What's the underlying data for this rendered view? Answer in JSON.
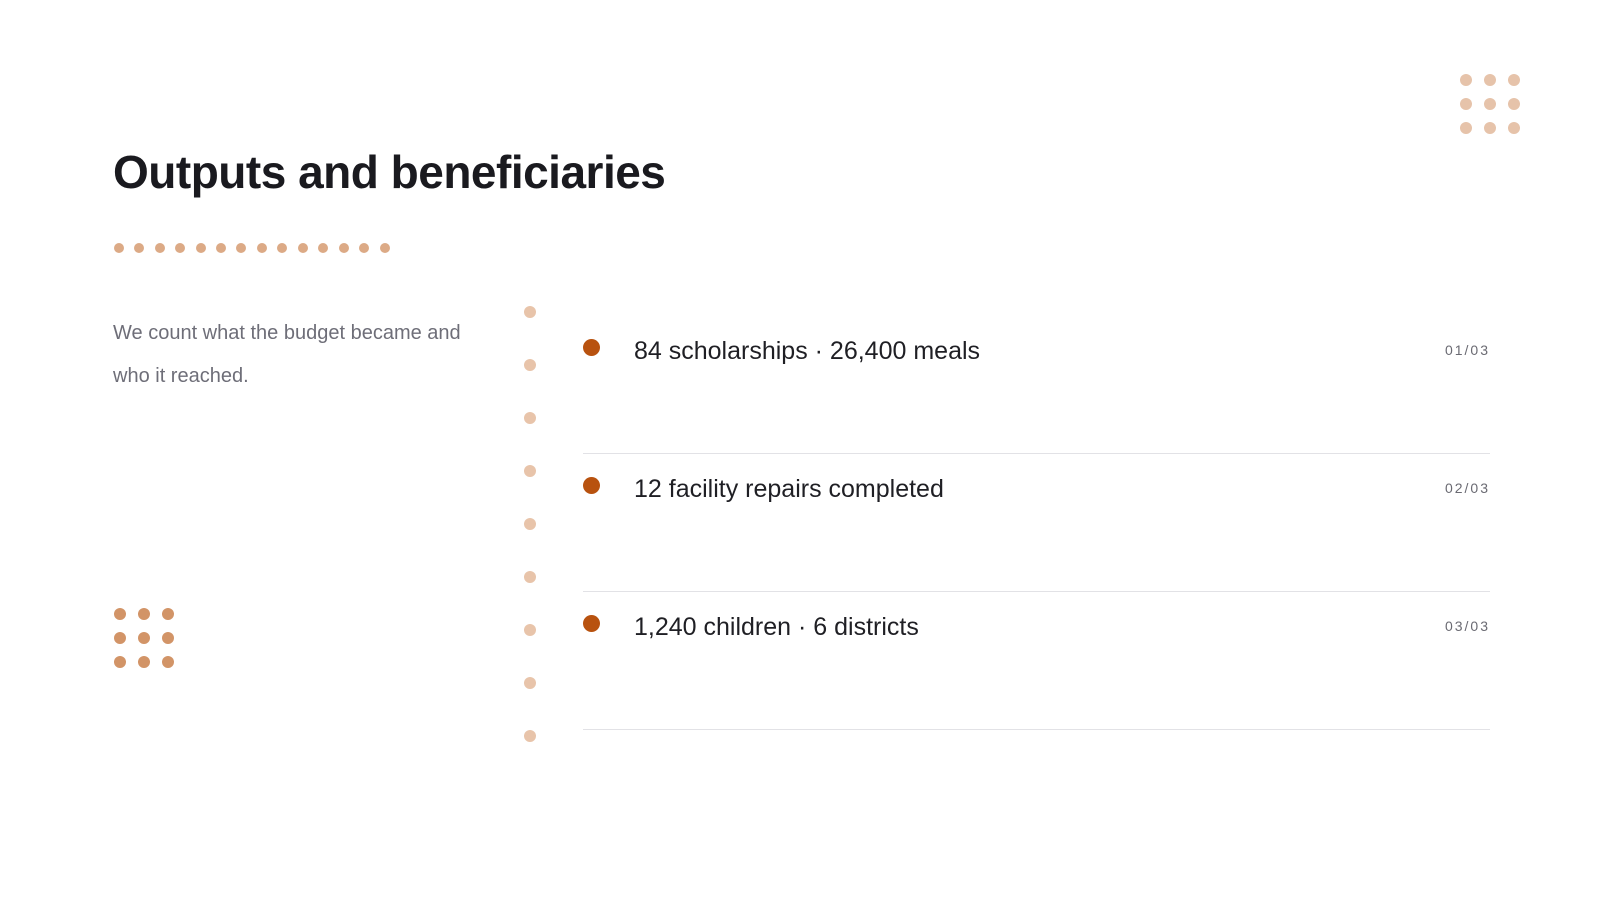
{
  "slide": {
    "title": "Outputs and beneficiaries",
    "subtitle": "We count what the budget became and who it reached.",
    "items": [
      {
        "text": "84 scholarships · 26,400 meals",
        "index": "01/03"
      },
      {
        "text": "12 facility repairs completed",
        "index": "02/03"
      },
      {
        "text": "1,240 children · 6 districts",
        "index": "03/03"
      }
    ]
  },
  "colors": {
    "accent": "#b8520f",
    "dots_light": "#e6c3aa",
    "dots_medium": "#dcaa86",
    "dots_dark": "#d29467",
    "title": "#1a1a1f",
    "muted_text": "#6e6e78",
    "divider": "#e2e2e6"
  }
}
